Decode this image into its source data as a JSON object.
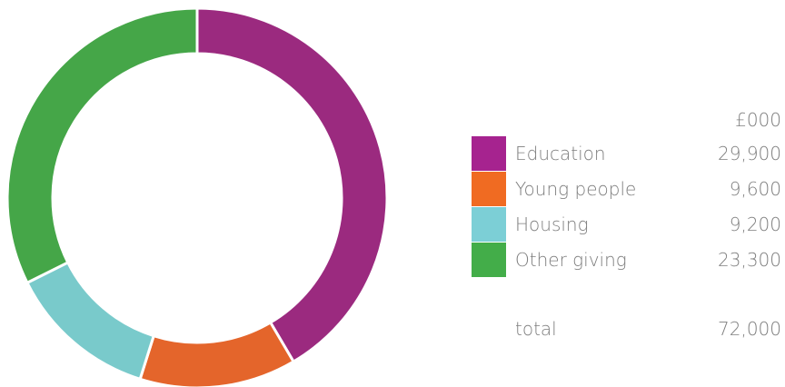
{
  "chart_data": {
    "type": "pie",
    "style": "donut",
    "unit_label": "£000",
    "categories": [
      "Education",
      "Young people",
      "Housing",
      "Other giving"
    ],
    "values": [
      29900,
      9600,
      9200,
      23300
    ],
    "value_labels": [
      "29,900",
      "9,600",
      "9,200",
      "23,300"
    ],
    "colors": [
      "#9b2a7f",
      "#e4652b",
      "#79cacb",
      "#45a648"
    ],
    "swatch_colors": [
      "#a6238f",
      "#f06b22",
      "#7ccfd6",
      "#43ad49"
    ],
    "total_label": "total",
    "total_value": "72,000",
    "legend_position": "right"
  }
}
